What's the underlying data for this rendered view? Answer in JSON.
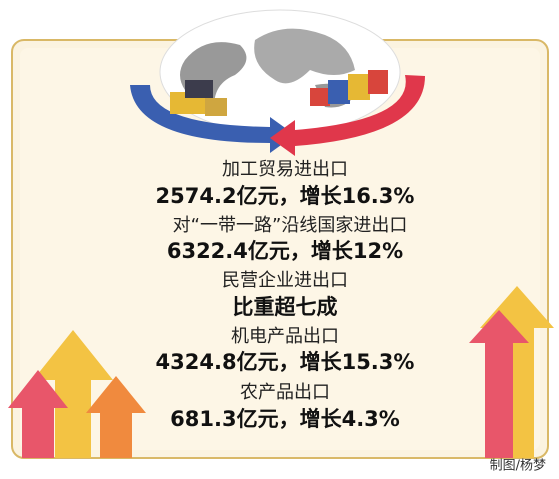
{
  "items": [
    {
      "label": "加工贸易进出口",
      "value": "2574.2亿元，增长16.3%"
    },
    {
      "label": "对“一带一路”沿线国家进出口",
      "value": "6322.4亿元，增长12%"
    },
    {
      "label": "民营企业进出口",
      "value": "比重超七成"
    },
    {
      "label": "机电产品出口",
      "value": "4324.8亿元，增长15.3%"
    },
    {
      "label": "农产品出口",
      "value": "681.3亿元，增长4.3%"
    }
  ],
  "credit": "制图/杨梦"
}
